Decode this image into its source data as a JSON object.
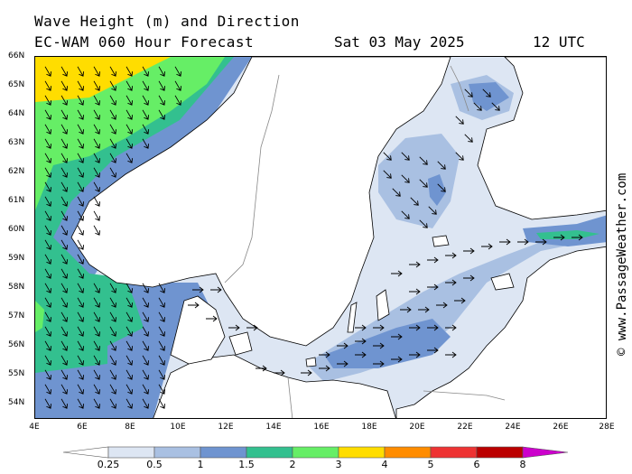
{
  "header": {
    "line1": "Wave Height (m) and Direction",
    "model": "EC-WAM 060 Hour Forecast",
    "date": "Sat 03 May 2025",
    "time": "12 UTC"
  },
  "credit": "© www.PassageWeather.com",
  "lat_labels": [
    "66N",
    "65N",
    "64N",
    "63N",
    "62N",
    "61N",
    "60N",
    "59N",
    "58N",
    "57N",
    "56N",
    "55N",
    "54N"
  ],
  "lon_labels": [
    "4E",
    "6E",
    "8E",
    "10E",
    "12E",
    "14E",
    "16E",
    "18E",
    "20E",
    "22E",
    "24E",
    "26E",
    "28E"
  ],
  "colorbar": {
    "labels": [
      "0.25",
      "0.5",
      "1",
      "1.5",
      "2",
      "3",
      "4",
      "5",
      "6",
      "8"
    ],
    "colors": [
      "#ffffff",
      "#dde6f3",
      "#a9c0e2",
      "#6f94d0",
      "#33c08f",
      "#66ee66",
      "#ffdd00",
      "#ff8c00",
      "#ee3333",
      "#bb0000",
      "#cc00cc"
    ]
  },
  "colors": {
    "land": "#ffffff",
    "wave_025_05": "#dde6f3",
    "wave_05_1": "#a9c0e2",
    "wave_1_15": "#6f94d0",
    "wave_15_2": "#33c08f",
    "wave_2_3": "#66ee66",
    "wave_3_4": "#ffdd00"
  }
}
